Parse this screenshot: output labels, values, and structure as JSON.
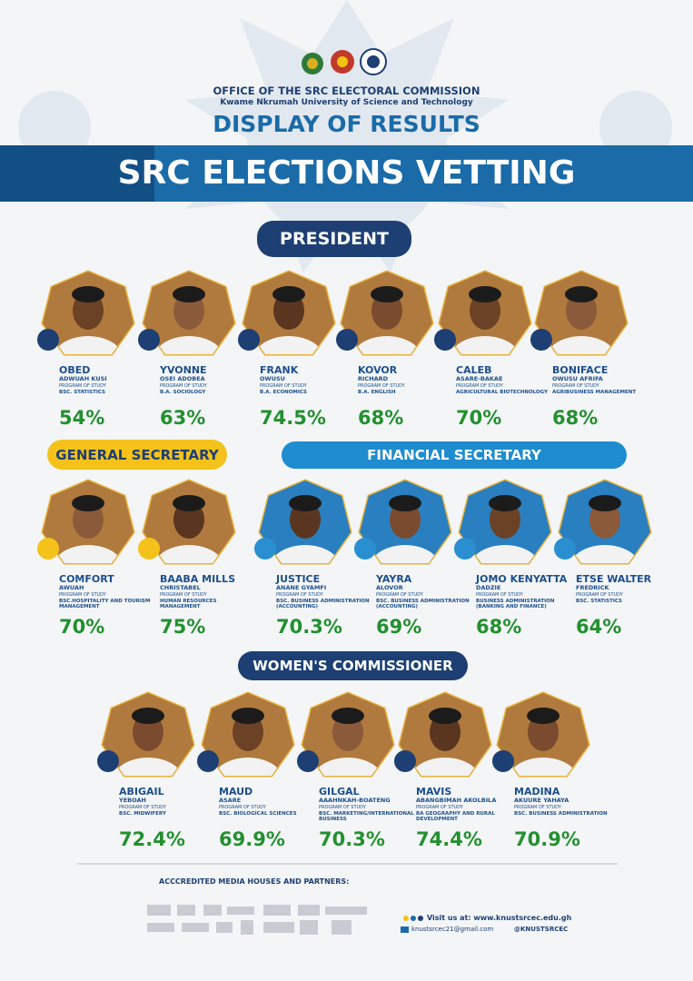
{
  "header": {
    "office": "OFFICE OF THE SRC ELECTORAL COMMISSION",
    "university": "Kwame Nkrumah University of Science and Technology",
    "subtitle": "DISPLAY OF RESULTS",
    "banner": "SRC ELECTIONS VETTING"
  },
  "sections": [
    {
      "title": "PRESIDENT",
      "candidates": [
        {
          "first": "OBED",
          "last": "ADWUAH KUSI",
          "program_label": "PROGRAM OF STUDY",
          "program": "BSC. STATISTICS",
          "score": "54%"
        },
        {
          "first": "YVONNE",
          "last": "OSEI ADOBEA",
          "program_label": "PROGRAM OF STUDY",
          "program": "B.A. SOCIOLOGY",
          "score": "63%"
        },
        {
          "first": "FRANK",
          "last": "OWUSU",
          "program_label": "PROGRAM OF STUDY",
          "program": "B.A. ECONOMICS",
          "score": "74.5%"
        },
        {
          "first": "KOVOR",
          "last": "RICHARD",
          "program_label": "PROGRAM OF STUDY",
          "program": "B.A. ENGLISH",
          "score": "68%"
        },
        {
          "first": "CALEB",
          "last": "ASARE-BAKAE",
          "program_label": "PROGRAM OF STUDY",
          "program": "AGRICULTURAL BIOTECHNOLOGY",
          "score": "70%"
        },
        {
          "first": "BONIFACE",
          "last": "OWUSU AFRIFA",
          "program_label": "PROGRAM OF STUDY",
          "program": "AGRIBUSINESS MANAGEMENT",
          "score": "68%"
        }
      ]
    },
    {
      "title": "GENERAL SECRETARY",
      "candidates": [
        {
          "first": "COMFORT",
          "last": "AWUAH",
          "program_label": "PROGRAM OF STUDY",
          "program": "BSC.HOSPITALITY AND TOURISM MANAGEMENT",
          "score": "70%"
        },
        {
          "first": "BAABA MILLS",
          "last": "CHRISTABEL",
          "program_label": "PROGRAM OF STUDY",
          "program": "HUMAN RESOURCES MANAGEMENT",
          "score": "75%"
        }
      ]
    },
    {
      "title": "FINANCIAL SECRETARY",
      "candidates": [
        {
          "first": "JUSTICE",
          "last": "ANANE GYAMFI",
          "program_label": "PROGRAM OF STUDY",
          "program": "BSC. BUSINESS ADMINISTRATION (ACCOUNTING)",
          "score": "70.3%"
        },
        {
          "first": "YAYRA",
          "last": "ALOVOR",
          "program_label": "PROGRAM OF STUDY",
          "program": "BSC. BUSINESS ADMINISTRATION (ACCOUNTING)",
          "score": "69%"
        },
        {
          "first": "JOMO KENYATTA",
          "last": "DADZIE",
          "program_label": "PROGRAM OF STUDY",
          "program": "BUSINESS ADMINISTRATION (BANKING AND FINANCE)",
          "score": "68%"
        },
        {
          "first": "ETSE WALTER",
          "last": "FREDRICK",
          "program_label": "PROGRAM OF STUDY",
          "program": "BSC. STATISTICS",
          "score": "64%"
        }
      ]
    },
    {
      "title": "WOMEN'S COMMISSIONER",
      "candidates": [
        {
          "first": "ABIGAIL",
          "last": "YEBOAH",
          "program_label": "PROGRAM OF STUDY",
          "program": "BSC. MIDWIFERY",
          "score": "72.4%"
        },
        {
          "first": "MAUD",
          "last": "ASARE",
          "program_label": "PROGRAM OF STUDY",
          "program": "BSC. BIOLOGICAL SCIENCES",
          "score": "69.9%"
        },
        {
          "first": "GILGAL",
          "last": "AAAHNKAH-BOATENG",
          "program_label": "PROGRAM OF STUDY",
          "program": "BSC. MARKETING/INTERNATIONAL BUSINESS",
          "score": "70.3%"
        },
        {
          "first": "MAVIS",
          "last": "ABANGBIMAH AKOLBILA",
          "program_label": "PROGRAM OF STUDY",
          "program": "BA GEOGRAPHY AND RURAL DEVELOPMENT",
          "score": "74.4%"
        },
        {
          "first": "MADINA",
          "last": "AKUURE YAHAYA",
          "program_label": "PROGRAM OF STUDY",
          "program": "BSC. BUSINESS ADMINISTRATION",
          "score": "70.9%"
        }
      ]
    }
  ],
  "footer": {
    "partners_title": "ACCCREDITED MEDIA HOUSES AND PARTNERS:",
    "website": "Visit us at: www.knustsrcec.edu.gh",
    "email": "knustsrcec21@gmail.com",
    "handle": "@KNUSTSRCEC"
  }
}
